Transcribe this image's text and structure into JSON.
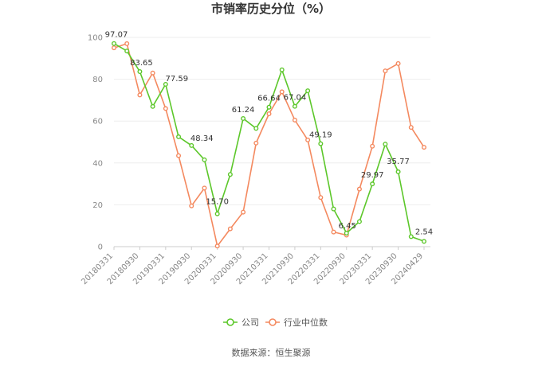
{
  "chart_data": {
    "type": "line",
    "title": "市销率历史分位（%）",
    "ylim": [
      0,
      100
    ],
    "yticks": [
      0,
      20,
      40,
      60,
      80,
      100
    ],
    "x_tick_labels": [
      "20180331",
      "20180930",
      "20190331",
      "20190930",
      "20200331",
      "20200930",
      "20210331",
      "20210930",
      "20220331",
      "20220930",
      "20230331",
      "20230930",
      "20240429"
    ],
    "x_tick_positions": [
      0,
      2,
      4,
      6,
      8,
      10,
      12,
      14,
      16,
      18,
      20,
      22,
      24
    ],
    "grid": true,
    "legend_position": "bottom",
    "series": [
      {
        "name": "公司",
        "color": "#5cc72a",
        "values": [
          97.07,
          93.5,
          83.65,
          67.0,
          77.59,
          52.5,
          48.34,
          41.5,
          15.7,
          34.5,
          61.24,
          56.5,
          66.64,
          84.5,
          67.04,
          74.5,
          49.19,
          18.0,
          6.45,
          12.0,
          29.97,
          49.0,
          35.77,
          4.8,
          2.54
        ]
      },
      {
        "name": "行业中位数",
        "color": "#f4895f",
        "values": [
          95.0,
          97.0,
          72.5,
          83.0,
          66.0,
          43.5,
          19.5,
          28.0,
          0.3,
          8.5,
          16.5,
          49.5,
          63.5,
          74.0,
          60.5,
          51.0,
          23.5,
          7.0,
          5.5,
          27.5,
          48.0,
          84.0,
          87.5,
          57.0,
          47.5
        ]
      }
    ],
    "data_labels": [
      {
        "index": 0,
        "text": "97.07"
      },
      {
        "index": 2,
        "text": "83.65"
      },
      {
        "index": 4,
        "text": "77.59"
      },
      {
        "index": 6,
        "text": "48.34"
      },
      {
        "index": 8,
        "text": "15.70"
      },
      {
        "index": 10,
        "text": "61.24"
      },
      {
        "index": 12,
        "text": "66.64"
      },
      {
        "index": 14,
        "text": "67.04"
      },
      {
        "index": 16,
        "text": "49.19"
      },
      {
        "index": 18,
        "text": "6.45"
      },
      {
        "index": 20,
        "text": "29.97"
      },
      {
        "index": 22,
        "text": "35.77"
      },
      {
        "index": 24,
        "text": "2.54"
      }
    ]
  },
  "source_text": "数据来源：恒生聚源"
}
